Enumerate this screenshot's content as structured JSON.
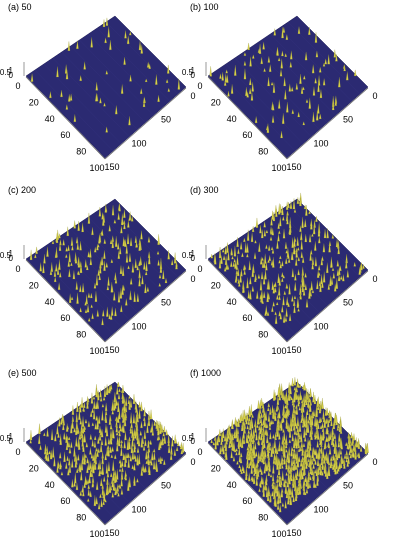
{
  "chart_data": [
    {
      "type": "surface",
      "label": "(a) 50",
      "peaks": 50,
      "x_ticks": [
        "0",
        "20",
        "40",
        "60",
        "80",
        "100"
      ],
      "y_ticks": [
        "0",
        "50",
        "100",
        "150"
      ],
      "z_ticks": [
        "0",
        "0.5",
        "1"
      ]
    },
    {
      "type": "surface",
      "label": "(b) 100",
      "peaks": 100,
      "x_ticks": [
        "0",
        "20",
        "40",
        "60",
        "80",
        "100"
      ],
      "y_ticks": [
        "0",
        "50",
        "100",
        "150"
      ],
      "z_ticks": [
        "0",
        "0.5",
        "1"
      ]
    },
    {
      "type": "surface",
      "label": "(c) 200",
      "peaks": 200,
      "x_ticks": [
        "0",
        "20",
        "40",
        "60",
        "80",
        "100"
      ],
      "y_ticks": [
        "0",
        "50",
        "100",
        "150"
      ],
      "z_ticks": [
        "0",
        "0.5",
        "1"
      ]
    },
    {
      "type": "surface",
      "label": "(d) 300",
      "peaks": 300,
      "x_ticks": [
        "0",
        "20",
        "40",
        "60",
        "80",
        "100"
      ],
      "y_ticks": [
        "0",
        "50",
        "100",
        "150"
      ],
      "z_ticks": [
        "0",
        "0.5",
        "1"
      ]
    },
    {
      "type": "surface",
      "label": "(e) 500",
      "peaks": 500,
      "x_ticks": [
        "0",
        "20",
        "40",
        "60",
        "80",
        "100"
      ],
      "y_ticks": [
        "0",
        "50",
        "100",
        "150"
      ],
      "z_ticks": [
        "0",
        "0.5",
        "1"
      ]
    },
    {
      "type": "surface",
      "label": "(f) 1000",
      "peaks": 1000,
      "x_ticks": [
        "0",
        "20",
        "40",
        "60",
        "80",
        "100"
      ],
      "y_ticks": [
        "0",
        "50",
        "100",
        "150"
      ],
      "z_ticks": [
        "0",
        "0.5",
        "1"
      ]
    }
  ],
  "colors": {
    "surface": "#2b2a72",
    "surface_edge": "#1c1b55",
    "peak": "#d9d24a",
    "peak_dark": "#8a8a2a",
    "axis": "#555555"
  }
}
